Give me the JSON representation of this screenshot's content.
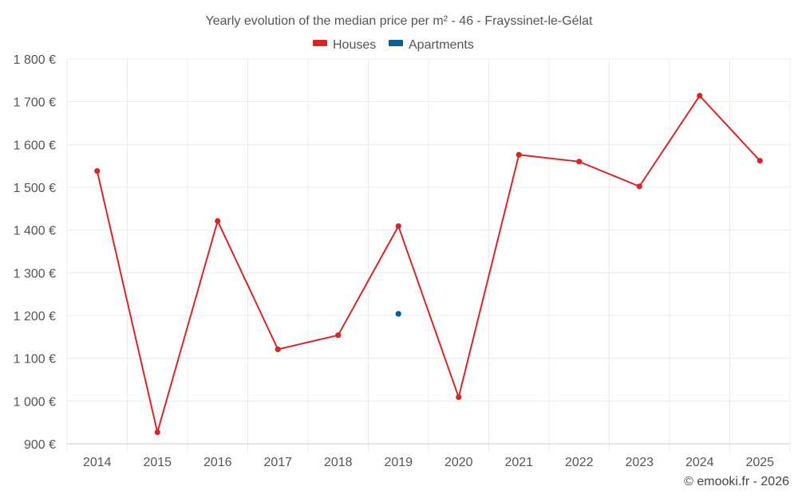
{
  "chart_data": {
    "type": "line",
    "title": "Yearly evolution of the median price per m² - 46 - Frayssinet-le-Gélat",
    "x": [
      "2014",
      "2015",
      "2016",
      "2017",
      "2018",
      "2019",
      "2020",
      "2021",
      "2022",
      "2023",
      "2024",
      "2025"
    ],
    "ylim": [
      900,
      1800
    ],
    "yticks": [
      900,
      1000,
      1100,
      1200,
      1300,
      1400,
      1500,
      1600,
      1700,
      1800
    ],
    "ytick_labels": [
      "900 €",
      "1 000 €",
      "1 100 €",
      "1 200 €",
      "1 300 €",
      "1 400 €",
      "1 500 €",
      "1 600 €",
      "1 700 €",
      "1 800 €"
    ],
    "grid": true,
    "legend_position": "top-center",
    "series": [
      {
        "name": "Houses",
        "color": "#d62728",
        "values": [
          1538,
          927,
          1421,
          1121,
          1154,
          1409,
          1009,
          1576,
          1560,
          1502,
          1714,
          1562
        ]
      },
      {
        "name": "Apartments",
        "color": "#0b5e8f",
        "values": [
          null,
          null,
          null,
          null,
          null,
          1204,
          null,
          null,
          null,
          null,
          null,
          null
        ]
      }
    ]
  },
  "credit": "© emooki.fr - 2026"
}
